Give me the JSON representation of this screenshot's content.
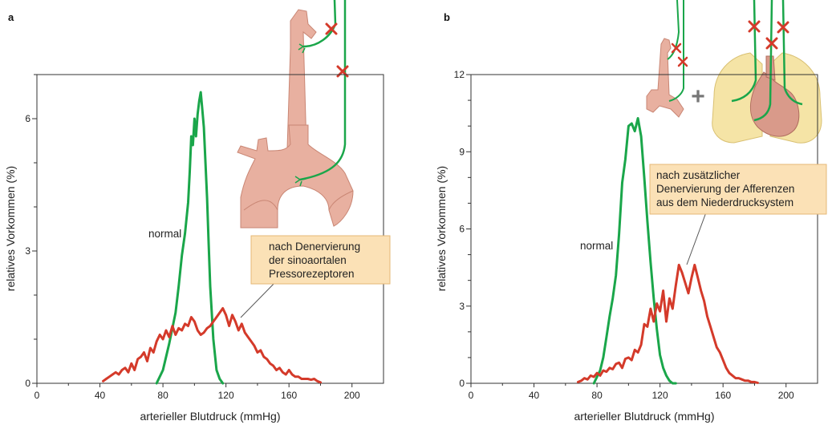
{
  "colors": {
    "normal": "#1aa64a",
    "denervated": "#d43a2a",
    "annotation_fill": "#fbe1b6",
    "annotation_border": "#e6b877",
    "artery": "#e8b0a0",
    "artery_dark": "#c98674",
    "nerve": "#1aa64a",
    "cut_mark": "#d43a2a"
  },
  "icons": [
    "aorta-with-carotid-illustration",
    "heart-and-lungs-illustration",
    "nerve-cut-x-icon",
    "plus-icon"
  ],
  "chart_data": [
    {
      "panel": "a",
      "type": "line",
      "xlabel": "arterieller Blutdruck (mmHg)",
      "ylabel": "relatives Vorkommen (%)",
      "xlim": [
        0,
        220
      ],
      "ylim": [
        0,
        7
      ],
      "xticks": [
        0,
        40,
        80,
        120,
        160,
        200
      ],
      "yticks": [
        0,
        3,
        6
      ],
      "legend": "none",
      "grid": false,
      "series": [
        {
          "label": "normal",
          "x": [
            76,
            80,
            84,
            88,
            90,
            92,
            94,
            96,
            97,
            98,
            99,
            100,
            101,
            102,
            103,
            104,
            105,
            106,
            107,
            108,
            109,
            110,
            112,
            114,
            116,
            118
          ],
          "y": [
            0,
            0.3,
            0.9,
            1.6,
            2.2,
            2.9,
            3.4,
            4.1,
            4.8,
            5.6,
            5.4,
            6.0,
            5.6,
            6.1,
            6.4,
            6.6,
            6.2,
            5.8,
            5.0,
            4.2,
            3.2,
            2.2,
            1.0,
            0.3,
            0.1,
            0
          ],
          "color": "#1aa64a"
        },
        {
          "label": "nach Denervierung der sinoaortalen Pressorezeptoren",
          "x": [
            42,
            44,
            46,
            48,
            50,
            52,
            54,
            56,
            58,
            60,
            62,
            64,
            66,
            68,
            70,
            72,
            74,
            76,
            78,
            80,
            82,
            84,
            86,
            88,
            90,
            92,
            94,
            96,
            98,
            100,
            102,
            104,
            106,
            108,
            110,
            112,
            114,
            116,
            118,
            120,
            122,
            124,
            126,
            128,
            130,
            132,
            134,
            136,
            138,
            140,
            142,
            144,
            146,
            148,
            150,
            152,
            154,
            156,
            158,
            160,
            162,
            164,
            166,
            168,
            170,
            172,
            174,
            176,
            178,
            180
          ],
          "y": [
            0.05,
            0.1,
            0.15,
            0.2,
            0.25,
            0.2,
            0.3,
            0.35,
            0.25,
            0.45,
            0.3,
            0.55,
            0.6,
            0.7,
            0.5,
            0.8,
            0.7,
            0.95,
            1.1,
            1.0,
            1.2,
            1.05,
            1.3,
            1.1,
            1.25,
            1.2,
            1.35,
            1.3,
            1.5,
            1.4,
            1.2,
            1.1,
            1.15,
            1.25,
            1.3,
            1.4,
            1.5,
            1.6,
            1.7,
            1.55,
            1.3,
            1.55,
            1.4,
            1.2,
            1.35,
            1.15,
            1.05,
            0.95,
            0.85,
            0.7,
            0.75,
            0.6,
            0.55,
            0.45,
            0.4,
            0.3,
            0.35,
            0.25,
            0.2,
            0.3,
            0.2,
            0.15,
            0.15,
            0.1,
            0.1,
            0.1,
            0.08,
            0.1,
            0.05,
            0.02
          ],
          "color": "#d43a2a"
        }
      ],
      "annotations": [
        "normal",
        "nach Denervierung",
        "der sinoaortalen",
        "Pressorezeptoren"
      ]
    },
    {
      "panel": "b",
      "type": "line",
      "xlabel": "arterieller Blutdruck (mmHg)",
      "ylabel": "relatives Vorkommen (%)",
      "xlim": [
        0,
        220
      ],
      "ylim": [
        0,
        12
      ],
      "xticks": [
        0,
        40,
        80,
        120,
        160,
        200
      ],
      "yticks": [
        0,
        3,
        6,
        9,
        12
      ],
      "legend": "none",
      "grid": false,
      "series": [
        {
          "label": "normal",
          "x": [
            78,
            82,
            84,
            86,
            88,
            90,
            92,
            94,
            96,
            98,
            100,
            102,
            104,
            106,
            108,
            110,
            112,
            114,
            116,
            118,
            120,
            122,
            124,
            126,
            128,
            130
          ],
          "y": [
            0,
            0.5,
            1.0,
            1.8,
            2.6,
            3.3,
            4.2,
            5.8,
            7.8,
            8.7,
            10.0,
            10.1,
            9.8,
            10.3,
            9.6,
            8.0,
            6.3,
            4.7,
            3.3,
            2.1,
            1.1,
            0.6,
            0.3,
            0.1,
            0,
            0
          ],
          "color": "#1aa64a"
        },
        {
          "label": "nach zusätzlicher Denervierung der Afferenzen aus dem Niederdrucksystem",
          "x": [
            68,
            70,
            72,
            74,
            76,
            78,
            80,
            82,
            84,
            86,
            88,
            90,
            92,
            94,
            96,
            98,
            100,
            102,
            104,
            106,
            108,
            110,
            112,
            114,
            116,
            118,
            120,
            122,
            124,
            126,
            128,
            130,
            132,
            134,
            136,
            138,
            140,
            142,
            144,
            146,
            148,
            150,
            152,
            154,
            156,
            158,
            160,
            162,
            164,
            166,
            168,
            170,
            172,
            174,
            176,
            178,
            180,
            182
          ],
          "y": [
            0.05,
            0.1,
            0.2,
            0.15,
            0.3,
            0.25,
            0.4,
            0.3,
            0.5,
            0.45,
            0.6,
            0.55,
            0.75,
            0.8,
            0.6,
            0.95,
            1.0,
            0.9,
            1.3,
            1.2,
            1.5,
            2.3,
            2.2,
            2.9,
            2.4,
            3.1,
            2.8,
            3.6,
            2.4,
            3.3,
            2.9,
            3.8,
            4.6,
            4.3,
            3.9,
            3.5,
            4.1,
            4.6,
            4.1,
            3.6,
            3.2,
            2.6,
            2.2,
            1.8,
            1.4,
            1.2,
            0.9,
            0.6,
            0.4,
            0.3,
            0.2,
            0.2,
            0.15,
            0.1,
            0.1,
            0.05,
            0.05,
            0.02
          ],
          "color": "#d43a2a"
        }
      ],
      "annotations": [
        "normal",
        "nach zusätzlicher",
        "Denervierung der Afferenzen",
        "aus dem Niederdrucksystem"
      ]
    }
  ],
  "panels": [
    {
      "tag": "a",
      "normal_label": "normal",
      "callout": [
        "nach Denervierung",
        "der sinoaortalen",
        "Pressorezeptoren"
      ],
      "xlabel": "arterieller Blutdruck (mmHg)",
      "ylabel": "relatives Vorkommen (%)"
    },
    {
      "tag": "b",
      "normal_label": "normal",
      "callout": [
        "nach zusätzlicher",
        "Denervierung der Afferenzen",
        "aus dem Niederdrucksystem"
      ],
      "xlabel": "arterieller Blutdruck (mmHg)",
      "ylabel": "relatives Vorkommen (%)",
      "plus": "+"
    }
  ]
}
